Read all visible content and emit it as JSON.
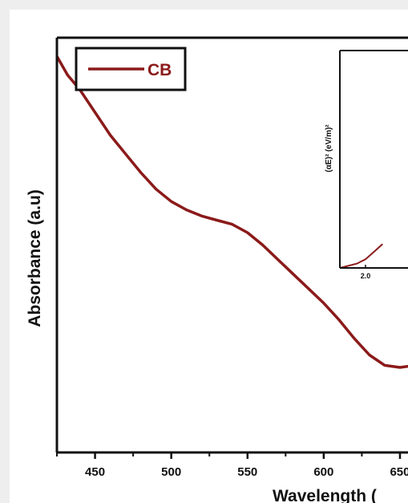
{
  "chart_data": {
    "type": "line",
    "xlabel": "Wavelength (",
    "ylabel": "Absorbance (a.u)",
    "xlim": [
      425,
      660
    ],
    "ylim": [
      0,
      1
    ],
    "x_ticks": [
      450,
      500,
      550,
      600,
      650
    ],
    "grid": false,
    "legend": {
      "placement": "top-left",
      "entries": [
        "CB"
      ]
    },
    "colors": {
      "series": "#8b1a1a",
      "axis": "#111111",
      "background": "#eeeeee",
      "plot": "#ffffff"
    },
    "series": [
      {
        "name": "CB",
        "x": [
          425,
          432,
          440,
          450,
          460,
          470,
          480,
          490,
          500,
          510,
          520,
          530,
          540,
          550,
          560,
          570,
          580,
          590,
          600,
          610,
          620,
          630,
          640,
          650,
          660
        ],
        "y": [
          0.955,
          0.91,
          0.875,
          0.82,
          0.765,
          0.72,
          0.675,
          0.635,
          0.605,
          0.585,
          0.57,
          0.56,
          0.55,
          0.53,
          0.5,
          0.465,
          0.43,
          0.395,
          0.36,
          0.32,
          0.275,
          0.235,
          0.21,
          0.205,
          0.21
        ]
      }
    ],
    "inset": {
      "ylabel": "(αE)² (eV/m)²",
      "x_ticks": [
        "2.0"
      ],
      "xlim": [
        1.85,
        2.3
      ],
      "ylim": [
        0,
        1
      ],
      "series": [
        {
          "x": [
            1.85,
            1.95,
            2.0,
            2.05,
            2.1
          ],
          "y": [
            0.0,
            0.02,
            0.04,
            0.075,
            0.11
          ]
        }
      ]
    }
  }
}
